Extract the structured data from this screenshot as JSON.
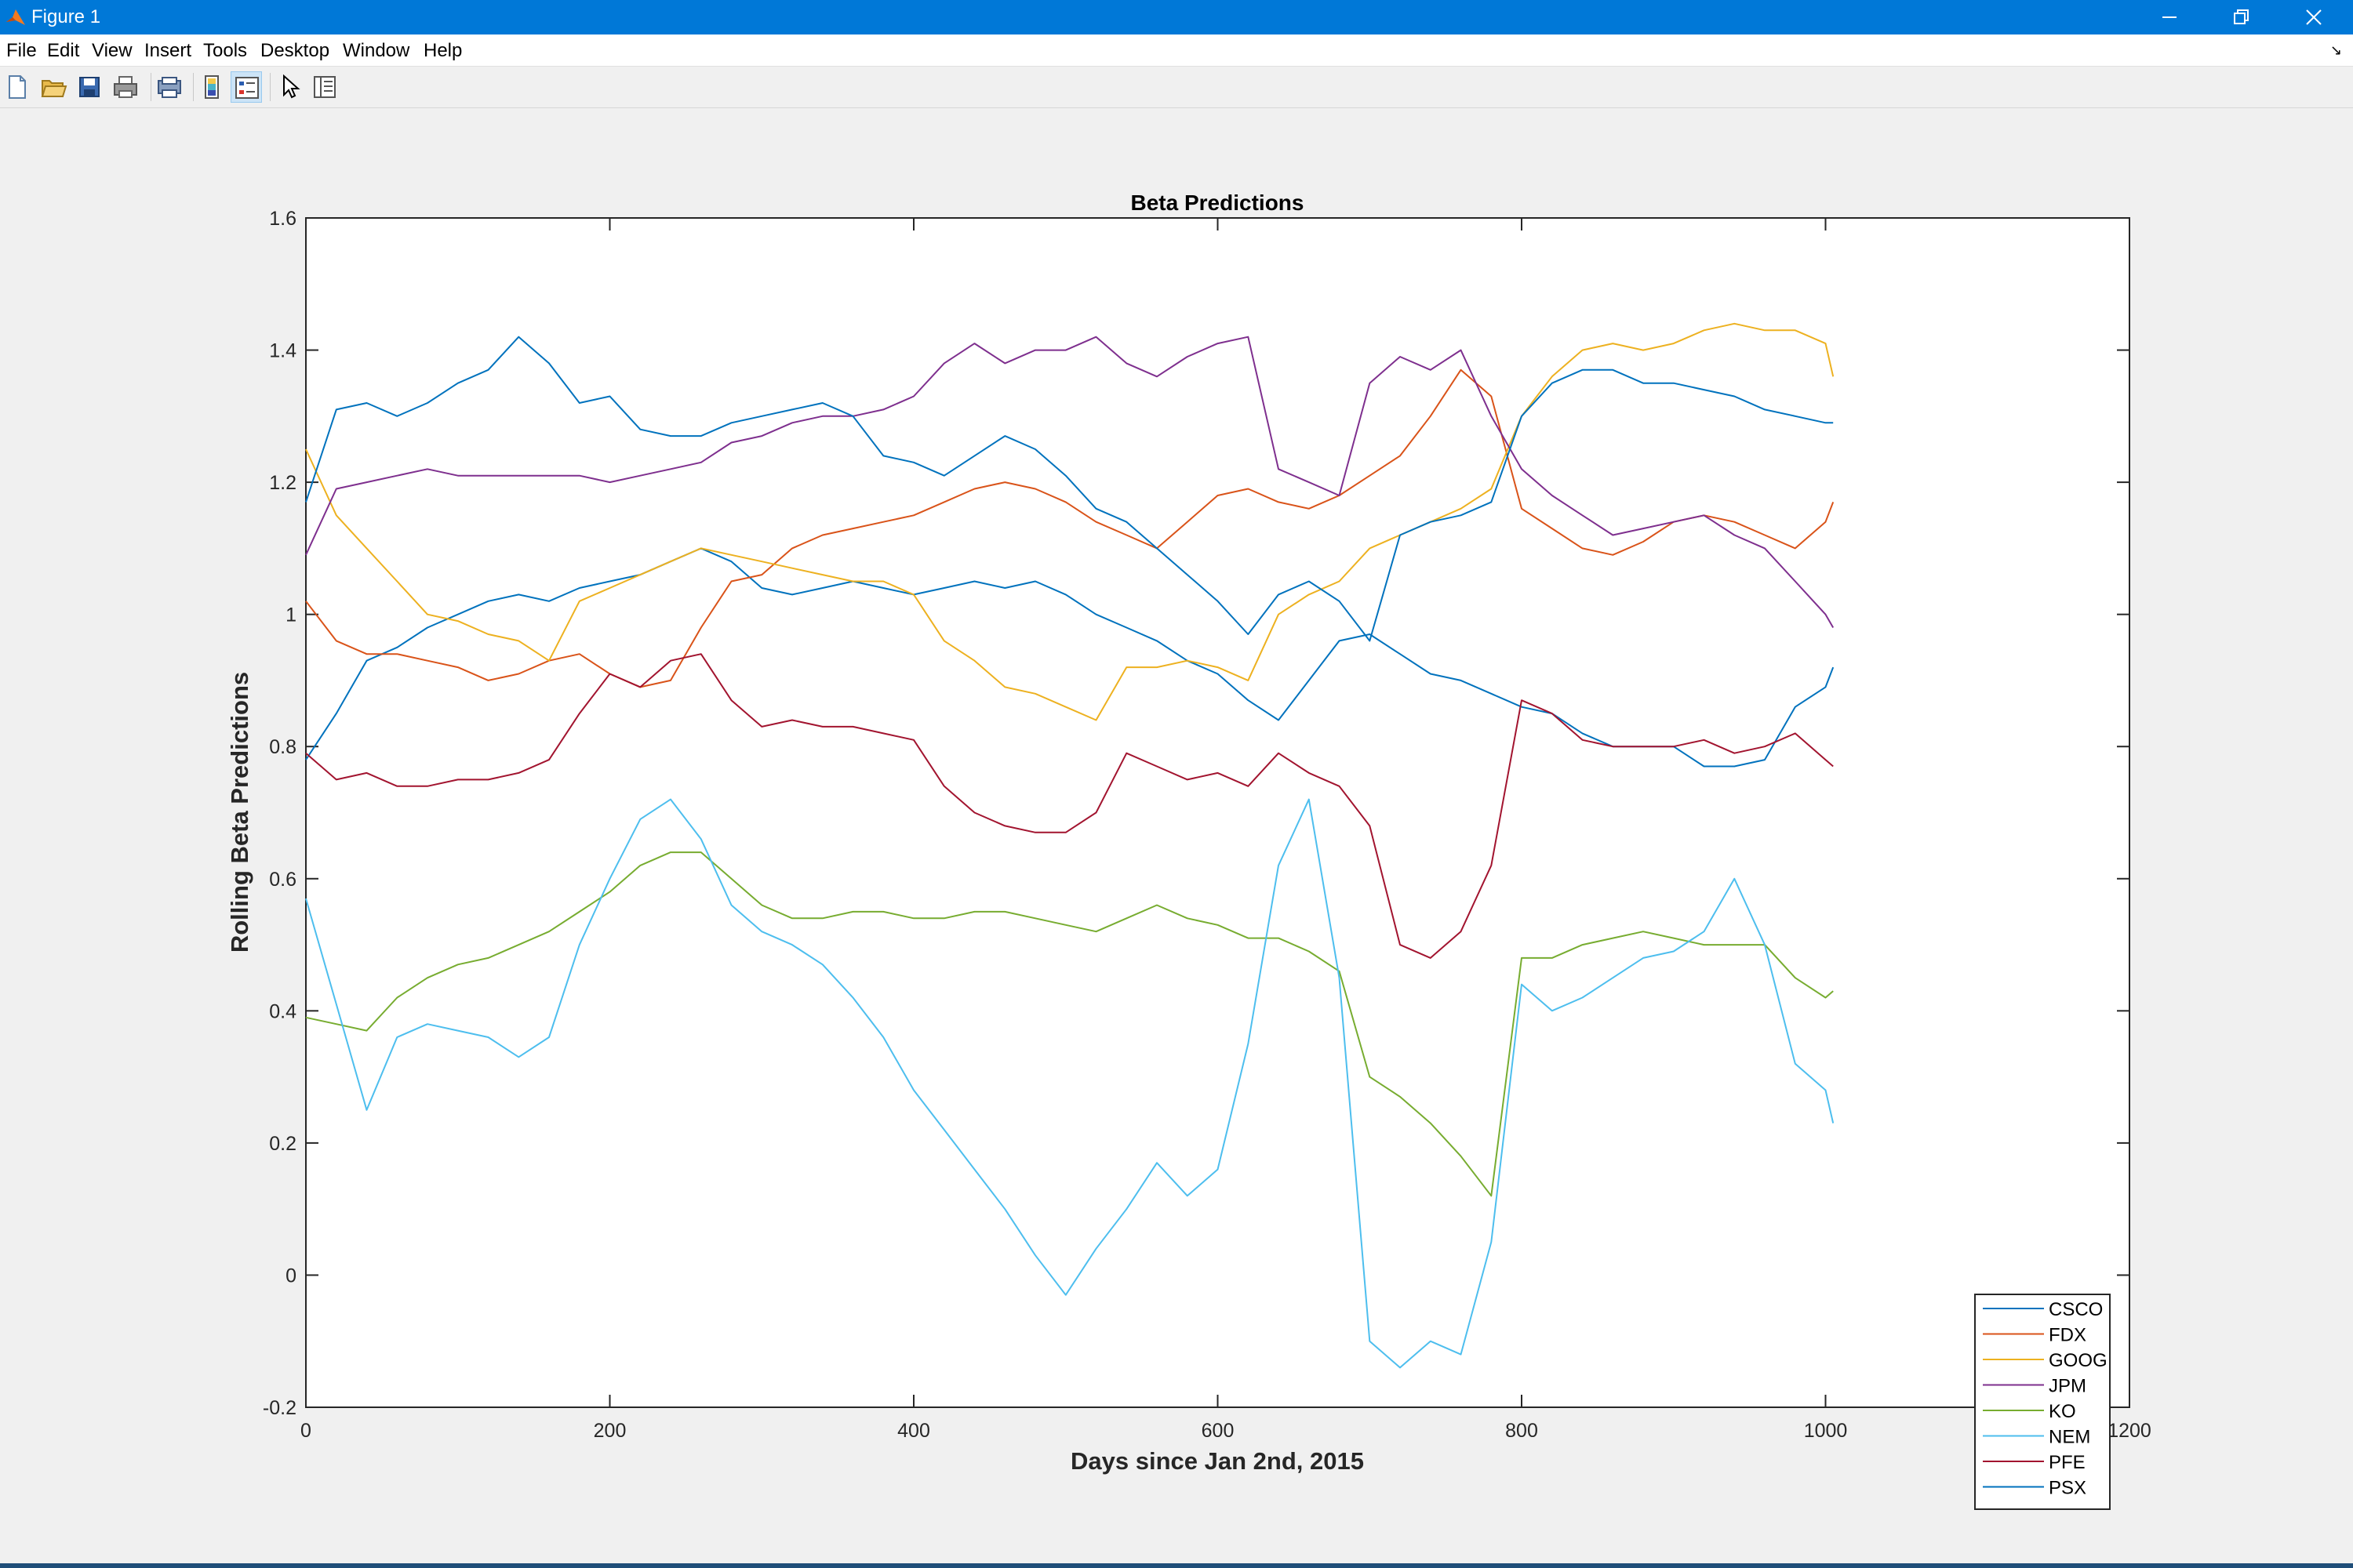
{
  "window": {
    "title": "Figure 1"
  },
  "menu": [
    "File",
    "Edit",
    "View",
    "Insert",
    "Tools",
    "Desktop",
    "Window",
    "Help"
  ],
  "toolbar_icons": [
    "new-figure-icon",
    "open-file-icon",
    "save-icon",
    "print-icon",
    "print-preview-icon",
    "colorbar-icon",
    "legend-icon",
    "pointer-icon",
    "property-editor-icon"
  ],
  "colors": {
    "titlebar": "#0078d7",
    "CSCO": "#0072bd",
    "FDX": "#d95319",
    "GOOG": "#edb120",
    "JPM": "#7e2f8e",
    "KO": "#77ac30",
    "NEM": "#4dbeee",
    "PFE": "#a2142f",
    "PSX": "#0072bd"
  },
  "chart_data": {
    "type": "line",
    "title": "Beta Predictions",
    "xlabel": "Days since Jan 2nd, 2015",
    "ylabel": "Rolling Beta Predictions",
    "xlim": [
      0,
      1200
    ],
    "ylim": [
      -0.2,
      1.6
    ],
    "xticks": [
      "0",
      "200",
      "400",
      "600",
      "800",
      "1000",
      "1200"
    ],
    "yticks": [
      "-0.2",
      "0",
      "0.2",
      "0.4",
      "0.6",
      "0.8",
      "1",
      "1.2",
      "1.4",
      "1.6"
    ],
    "legend_position": "bottom-right",
    "grid": false,
    "x": [
      0,
      20,
      40,
      60,
      80,
      100,
      120,
      140,
      160,
      180,
      200,
      220,
      240,
      260,
      280,
      300,
      320,
      340,
      360,
      380,
      400,
      420,
      440,
      460,
      480,
      500,
      520,
      540,
      560,
      580,
      600,
      620,
      640,
      660,
      680,
      700,
      720,
      740,
      760,
      780,
      800,
      820,
      840,
      860,
      880,
      900,
      920,
      940,
      960,
      980,
      1000,
      1005
    ],
    "series": [
      {
        "name": "CSCO",
        "values": [
          0.78,
          0.85,
          0.93,
          0.95,
          0.98,
          1.0,
          1.02,
          1.03,
          1.02,
          1.04,
          1.05,
          1.06,
          1.08,
          1.1,
          1.08,
          1.04,
          1.03,
          1.04,
          1.05,
          1.04,
          1.03,
          1.04,
          1.05,
          1.04,
          1.05,
          1.03,
          1.0,
          0.98,
          0.96,
          0.93,
          0.91,
          0.87,
          0.84,
          0.9,
          0.96,
          0.97,
          0.94,
          0.91,
          0.9,
          0.88,
          0.86,
          0.85,
          0.82,
          0.8,
          0.8,
          0.8,
          0.77,
          0.77,
          0.78,
          0.86,
          0.89,
          0.92
        ]
      },
      {
        "name": "FDX",
        "values": [
          1.02,
          0.96,
          0.94,
          0.94,
          0.93,
          0.92,
          0.9,
          0.91,
          0.93,
          0.94,
          0.91,
          0.89,
          0.9,
          0.98,
          1.05,
          1.06,
          1.1,
          1.12,
          1.13,
          1.14,
          1.15,
          1.17,
          1.19,
          1.2,
          1.19,
          1.17,
          1.14,
          1.12,
          1.1,
          1.14,
          1.18,
          1.19,
          1.17,
          1.16,
          1.18,
          1.21,
          1.24,
          1.3,
          1.37,
          1.33,
          1.16,
          1.13,
          1.1,
          1.09,
          1.11,
          1.14,
          1.15,
          1.14,
          1.12,
          1.1,
          1.14,
          1.17
        ]
      },
      {
        "name": "GOOG",
        "values": [
          1.25,
          1.15,
          1.1,
          1.05,
          1.0,
          0.99,
          0.97,
          0.96,
          0.93,
          1.02,
          1.04,
          1.06,
          1.08,
          1.1,
          1.09,
          1.08,
          1.07,
          1.06,
          1.05,
          1.05,
          1.03,
          0.96,
          0.93,
          0.89,
          0.88,
          0.86,
          0.84,
          0.92,
          0.92,
          0.93,
          0.92,
          0.9,
          1.0,
          1.03,
          1.05,
          1.1,
          1.12,
          1.14,
          1.16,
          1.19,
          1.3,
          1.36,
          1.4,
          1.41,
          1.4,
          1.41,
          1.43,
          1.44,
          1.43,
          1.43,
          1.41,
          1.36
        ]
      },
      {
        "name": "JPM",
        "values": [
          1.09,
          1.19,
          1.2,
          1.21,
          1.22,
          1.21,
          1.21,
          1.21,
          1.21,
          1.21,
          1.2,
          1.21,
          1.22,
          1.23,
          1.26,
          1.27,
          1.29,
          1.3,
          1.3,
          1.31,
          1.33,
          1.38,
          1.41,
          1.38,
          1.4,
          1.4,
          1.42,
          1.38,
          1.36,
          1.39,
          1.41,
          1.42,
          1.22,
          1.2,
          1.18,
          1.35,
          1.39,
          1.37,
          1.4,
          1.3,
          1.22,
          1.18,
          1.15,
          1.12,
          1.13,
          1.14,
          1.15,
          1.12,
          1.1,
          1.05,
          1.0,
          0.98
        ]
      },
      {
        "name": "KO",
        "values": [
          0.39,
          0.38,
          0.37,
          0.42,
          0.45,
          0.47,
          0.48,
          0.5,
          0.52,
          0.55,
          0.58,
          0.62,
          0.64,
          0.64,
          0.6,
          0.56,
          0.54,
          0.54,
          0.55,
          0.55,
          0.54,
          0.54,
          0.55,
          0.55,
          0.54,
          0.53,
          0.52,
          0.54,
          0.56,
          0.54,
          0.53,
          0.51,
          0.51,
          0.49,
          0.46,
          0.3,
          0.27,
          0.23,
          0.18,
          0.12,
          0.48,
          0.48,
          0.5,
          0.51,
          0.52,
          0.51,
          0.5,
          0.5,
          0.5,
          0.45,
          0.42,
          0.43
        ]
      },
      {
        "name": "NEM",
        "values": [
          0.57,
          0.41,
          0.25,
          0.36,
          0.38,
          0.37,
          0.36,
          0.33,
          0.36,
          0.5,
          0.6,
          0.69,
          0.72,
          0.66,
          0.56,
          0.52,
          0.5,
          0.47,
          0.42,
          0.36,
          0.28,
          0.22,
          0.16,
          0.1,
          0.03,
          -0.03,
          0.04,
          0.1,
          0.17,
          0.12,
          0.16,
          0.35,
          0.62,
          0.72,
          0.45,
          -0.1,
          -0.14,
          -0.1,
          -0.12,
          0.05,
          0.44,
          0.4,
          0.42,
          0.45,
          0.48,
          0.49,
          0.52,
          0.6,
          0.5,
          0.32,
          0.28,
          0.23
        ]
      },
      {
        "name": "PFE",
        "values": [
          0.79,
          0.75,
          0.76,
          0.74,
          0.74,
          0.75,
          0.75,
          0.76,
          0.78,
          0.85,
          0.91,
          0.89,
          0.93,
          0.94,
          0.87,
          0.83,
          0.84,
          0.83,
          0.83,
          0.82,
          0.81,
          0.74,
          0.7,
          0.68,
          0.67,
          0.67,
          0.7,
          0.79,
          0.77,
          0.75,
          0.76,
          0.74,
          0.79,
          0.76,
          0.74,
          0.68,
          0.5,
          0.48,
          0.52,
          0.62,
          0.87,
          0.85,
          0.81,
          0.8,
          0.8,
          0.8,
          0.81,
          0.79,
          0.8,
          0.82,
          0.78,
          0.77
        ]
      },
      {
        "name": "PSX",
        "values": [
          1.17,
          1.31,
          1.32,
          1.3,
          1.32,
          1.35,
          1.37,
          1.42,
          1.38,
          1.32,
          1.33,
          1.28,
          1.27,
          1.27,
          1.29,
          1.3,
          1.31,
          1.32,
          1.3,
          1.24,
          1.23,
          1.21,
          1.24,
          1.27,
          1.25,
          1.21,
          1.16,
          1.14,
          1.1,
          1.06,
          1.02,
          0.97,
          1.03,
          1.05,
          1.02,
          0.96,
          1.12,
          1.14,
          1.15,
          1.17,
          1.3,
          1.35,
          1.37,
          1.37,
          1.35,
          1.35,
          1.34,
          1.33,
          1.31,
          1.3,
          1.29,
          1.29
        ]
      }
    ]
  }
}
